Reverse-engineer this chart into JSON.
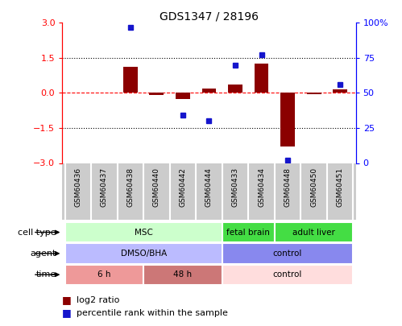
{
  "title": "GDS1347 / 28196",
  "samples": [
    "GSM60436",
    "GSM60437",
    "GSM60438",
    "GSM60440",
    "GSM60442",
    "GSM60444",
    "GSM60433",
    "GSM60434",
    "GSM60448",
    "GSM60450",
    "GSM60451"
  ],
  "log2_ratio": [
    0.0,
    0.0,
    1.1,
    -0.1,
    -0.25,
    0.2,
    0.35,
    1.25,
    -2.3,
    -0.05,
    0.15
  ],
  "percentile_rank": [
    null,
    null,
    97,
    null,
    34,
    30,
    70,
    77,
    2,
    null,
    56
  ],
  "bar_color": "#8B0000",
  "dot_color": "#1515CC",
  "yticks_left": [
    -3,
    -1.5,
    0,
    1.5,
    3
  ],
  "ytick_labels_right": [
    "0",
    "25",
    "50",
    "75",
    "100%"
  ],
  "cell_type_groups": [
    {
      "label": "MSC",
      "start": 0,
      "end": 6,
      "color": "#CCFFCC"
    },
    {
      "label": "fetal brain",
      "start": 6,
      "end": 8,
      "color": "#44DD44"
    },
    {
      "label": "adult liver",
      "start": 8,
      "end": 11,
      "color": "#44DD44"
    }
  ],
  "agent_groups": [
    {
      "label": "DMSO/BHA",
      "start": 0,
      "end": 6,
      "color": "#BBBBFF"
    },
    {
      "label": "control",
      "start": 6,
      "end": 11,
      "color": "#8888EE"
    }
  ],
  "time_groups": [
    {
      "label": "6 h",
      "start": 0,
      "end": 3,
      "color": "#EE9999"
    },
    {
      "label": "48 h",
      "start": 3,
      "end": 6,
      "color": "#CC7777"
    },
    {
      "label": "control",
      "start": 6,
      "end": 11,
      "color": "#FFDDDD"
    }
  ],
  "row_labels": [
    "cell type",
    "agent",
    "time"
  ],
  "legend_items": [
    {
      "color": "#8B0000",
      "label": "log2 ratio"
    },
    {
      "color": "#1515CC",
      "label": "percentile rank within the sample"
    }
  ]
}
